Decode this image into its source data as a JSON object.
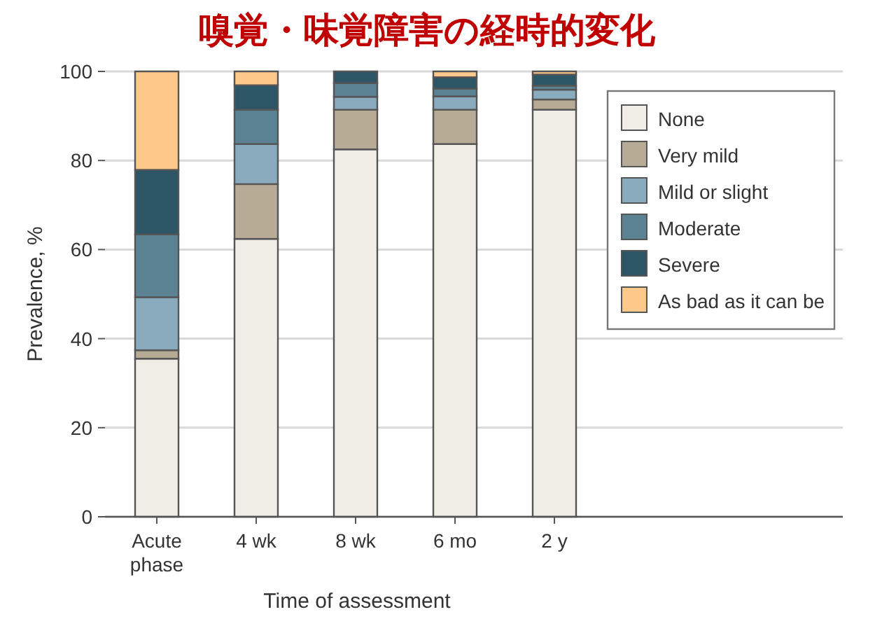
{
  "chart_data": {
    "type": "bar",
    "stacked": true,
    "title": "嗅覚・味覚障害の経時的変化",
    "xlabel": "Time of assessment",
    "ylabel": "Prevalence, %",
    "categories": [
      "Acute phase",
      "4 wk",
      "8 wk",
      "6 mo",
      "2 y"
    ],
    "series": [
      {
        "name": "None",
        "color": "#efede6",
        "values": [
          35.5,
          62.4,
          82.5,
          83.7,
          91.4
        ]
      },
      {
        "name": "Very mild",
        "color": "#b8ab96",
        "values": [
          1.9,
          12.3,
          8.9,
          7.7,
          2.3
        ]
      },
      {
        "name": "Mild or slight",
        "color": "#8aabbd",
        "values": [
          11.9,
          9.0,
          2.9,
          3.0,
          2.2
        ]
      },
      {
        "name": "Moderate",
        "color": "#5a8293",
        "values": [
          14.1,
          7.7,
          3.1,
          1.7,
          0.9
        ]
      },
      {
        "name": "Severe",
        "color": "#2c5566",
        "values": [
          14.5,
          5.5,
          2.6,
          2.6,
          2.5
        ]
      },
      {
        "name": "As bad as it can be",
        "color": "#fdc98a",
        "values": [
          22.1,
          3.1,
          0,
          1.3,
          0.7
        ]
      }
    ],
    "ylim": [
      0,
      100
    ],
    "yticks": [
      0,
      20,
      40,
      60,
      80,
      100
    ],
    "grid": "y",
    "legend": "top right"
  }
}
